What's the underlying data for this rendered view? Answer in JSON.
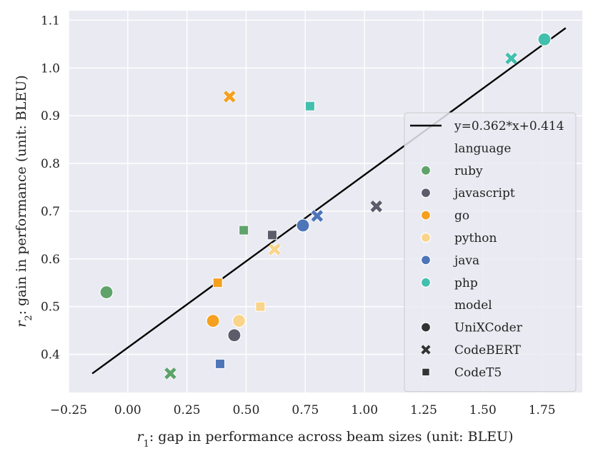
{
  "chart_data": {
    "type": "scatter",
    "xlabel": "r₁: gap in performance across beam sizes (unit: BLEU)",
    "ylabel": "r₂: gain in performance (unit: BLEU)",
    "xlim": [
      -0.25,
      1.92
    ],
    "ylim": [
      0.32,
      1.12
    ],
    "x_ticks": [
      -0.25,
      0.0,
      0.25,
      0.5,
      0.75,
      1.0,
      1.25,
      1.5,
      1.75
    ],
    "x_tick_labels": [
      "−0.25",
      "0.00",
      "0.25",
      "0.50",
      "0.75",
      "1.00",
      "1.25",
      "1.50",
      "1.75"
    ],
    "y_ticks": [
      0.4,
      0.5,
      0.6,
      0.7,
      0.8,
      0.9,
      1.0,
      1.1
    ],
    "y_tick_labels": [
      "0.4",
      "0.5",
      "0.6",
      "0.7",
      "0.8",
      "0.9",
      "1.0",
      "1.1"
    ],
    "grid": true,
    "fit_line": {
      "label": "y=0.362*x+0.414",
      "slope": 0.362,
      "intercept": 0.414,
      "x_start": -0.15,
      "x_end": 1.85,
      "color": "#000000"
    },
    "languages": [
      {
        "name": "ruby",
        "color": "#5fa36a"
      },
      {
        "name": "javascript",
        "color": "#5b5d6b"
      },
      {
        "name": "go",
        "color": "#f5a01e"
      },
      {
        "name": "python",
        "color": "#f9d48a"
      },
      {
        "name": "java",
        "color": "#4d75b8"
      },
      {
        "name": "php",
        "color": "#43bfae"
      }
    ],
    "models": [
      {
        "name": "UniXCoder",
        "marker": "circle"
      },
      {
        "name": "CodeBERT",
        "marker": "x"
      },
      {
        "name": "CodeT5",
        "marker": "square"
      }
    ],
    "points": [
      {
        "language": "ruby",
        "model": "UniXCoder",
        "x": -0.09,
        "y": 0.53
      },
      {
        "language": "ruby",
        "model": "CodeBERT",
        "x": 0.18,
        "y": 0.36
      },
      {
        "language": "ruby",
        "model": "CodeT5",
        "x": 0.49,
        "y": 0.66
      },
      {
        "language": "javascript",
        "model": "UniXCoder",
        "x": 0.45,
        "y": 0.44
      },
      {
        "language": "javascript",
        "model": "CodeBERT",
        "x": 1.05,
        "y": 0.71
      },
      {
        "language": "javascript",
        "model": "CodeT5",
        "x": 0.61,
        "y": 0.65
      },
      {
        "language": "go",
        "model": "UniXCoder",
        "x": 0.36,
        "y": 0.47
      },
      {
        "language": "go",
        "model": "CodeBERT",
        "x": 0.43,
        "y": 0.94
      },
      {
        "language": "go",
        "model": "CodeT5",
        "x": 0.38,
        "y": 0.55
      },
      {
        "language": "python",
        "model": "UniXCoder",
        "x": 0.47,
        "y": 0.47
      },
      {
        "language": "python",
        "model": "CodeBERT",
        "x": 0.62,
        "y": 0.62
      },
      {
        "language": "python",
        "model": "CodeT5",
        "x": 0.56,
        "y": 0.5
      },
      {
        "language": "java",
        "model": "UniXCoder",
        "x": 0.74,
        "y": 0.67
      },
      {
        "language": "java",
        "model": "CodeBERT",
        "x": 0.8,
        "y": 0.69
      },
      {
        "language": "java",
        "model": "CodeT5",
        "x": 0.39,
        "y": 0.38
      },
      {
        "language": "php",
        "model": "UniXCoder",
        "x": 1.76,
        "y": 1.06
      },
      {
        "language": "php",
        "model": "CodeBERT",
        "x": 1.62,
        "y": 1.02
      },
      {
        "language": "php",
        "model": "CodeT5",
        "x": 0.77,
        "y": 0.92
      }
    ],
    "legend": {
      "placement": "right",
      "language_title": "language",
      "model_title": "model"
    },
    "colors": {
      "plot_bg": "#eaeaf2",
      "grid": "#ffffff",
      "legend_bg": "#eaeaf2",
      "legend_border": "#cccccc",
      "model_marker": "#333333"
    }
  }
}
